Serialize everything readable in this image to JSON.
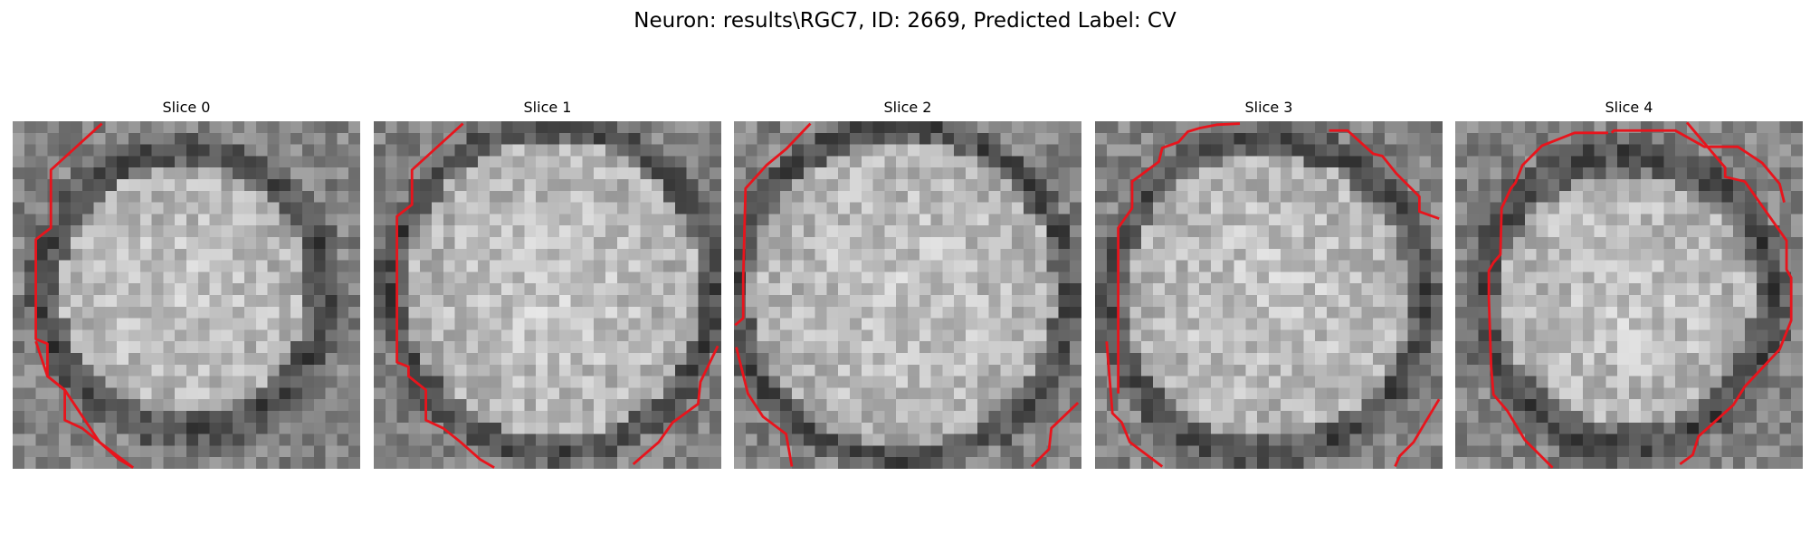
{
  "figure": {
    "title": "Neuron: results\\RGC7, ID: 2669, Predicted Label: CV"
  },
  "slices": [
    {
      "title": "Slice 0"
    },
    {
      "title": "Slice 1"
    },
    {
      "title": "Slice 2"
    },
    {
      "title": "Slice 3"
    },
    {
      "title": "Slice 4"
    }
  ],
  "colors": {
    "contour": "#e8141c",
    "background": "#ffffff"
  }
}
